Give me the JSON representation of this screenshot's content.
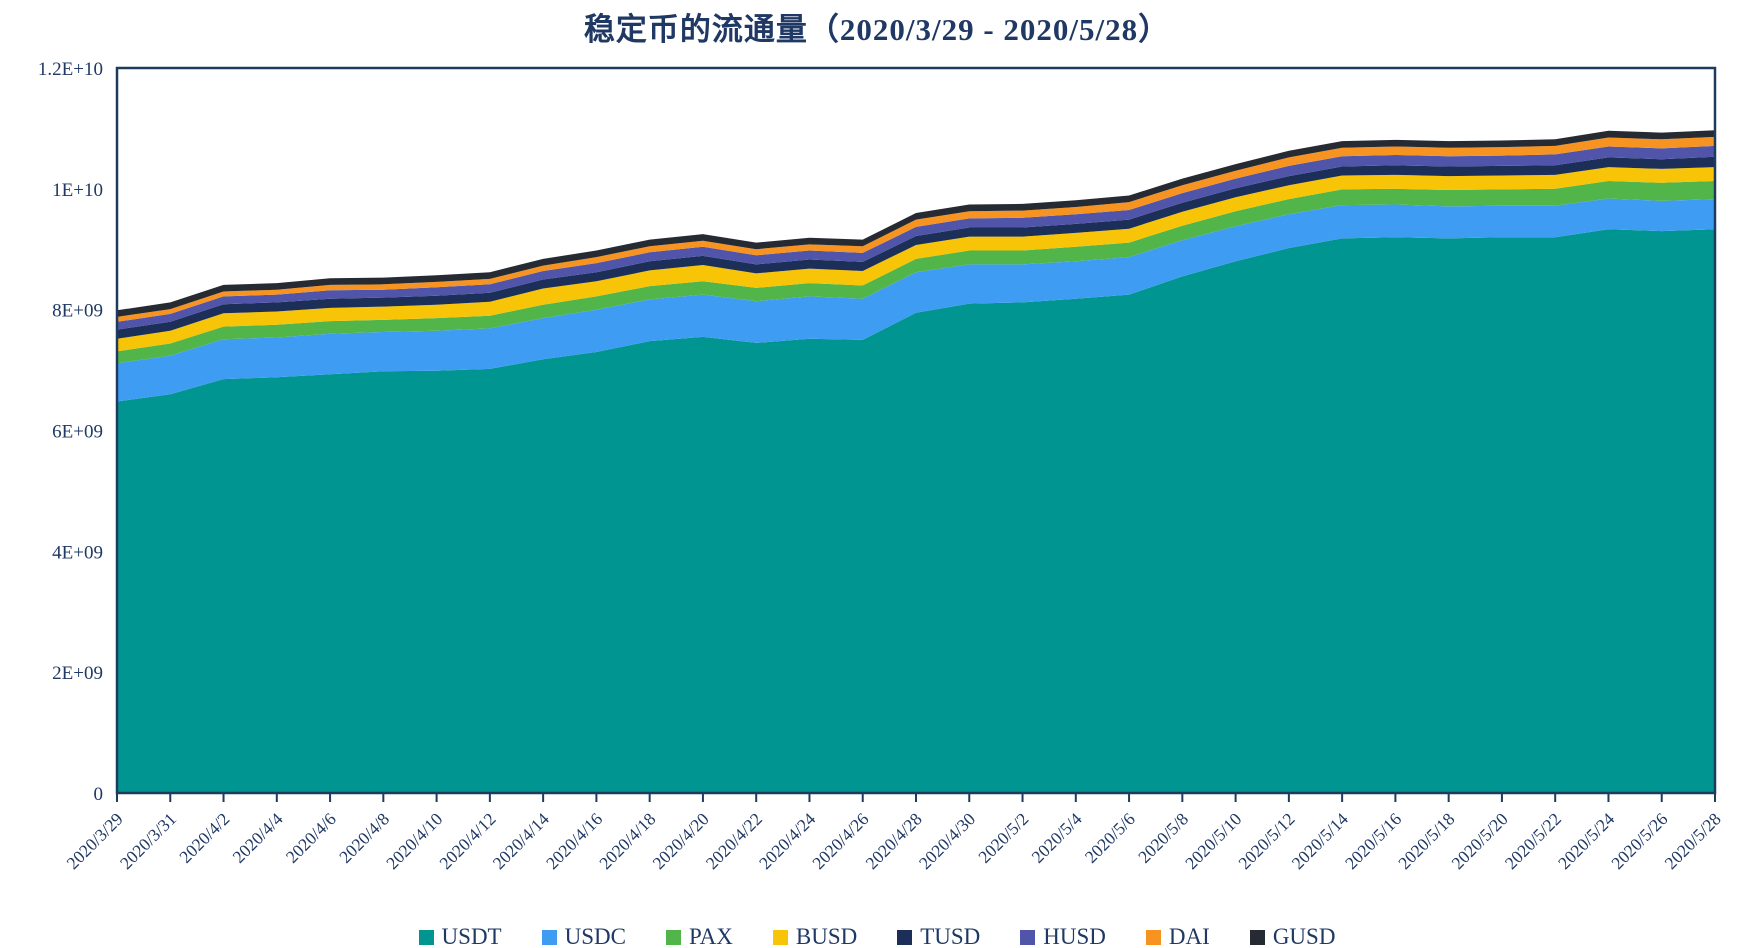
{
  "title": "稳定币的流通量（2020/3/29 - 2020/5/28）",
  "text_color": "#1F3864",
  "axis_color": "#1E3A5C",
  "chart_data": {
    "type": "area",
    "stacked": true,
    "title": "稳定币的流通量（2020/3/29 - 2020/5/28）",
    "xlabel": "",
    "ylabel": "",
    "unit": "USD (circulating supply)",
    "ylim": [
      0,
      12000000000
    ],
    "grid": false,
    "legend_position": "bottom",
    "y_ticks": [
      {
        "label": "0",
        "value_billions": 0
      },
      {
        "label": "2E+09",
        "value_billions": 2
      },
      {
        "label": "4E+09",
        "value_billions": 4
      },
      {
        "label": "6E+09",
        "value_billions": 6
      },
      {
        "label": "8E+09",
        "value_billions": 8
      },
      {
        "label": "1E+10",
        "value_billions": 10
      },
      {
        "label": "1.2E+10",
        "value_billions": 12
      }
    ],
    "x": [
      "2020/3/29",
      "2020/3/31",
      "2020/4/2",
      "2020/4/4",
      "2020/4/6",
      "2020/4/8",
      "2020/4/10",
      "2020/4/12",
      "2020/4/14",
      "2020/4/16",
      "2020/4/18",
      "2020/4/20",
      "2020/4/22",
      "2020/4/24",
      "2020/4/26",
      "2020/4/28",
      "2020/4/30",
      "2020/5/2",
      "2020/5/4",
      "2020/5/6",
      "2020/5/8",
      "2020/5/10",
      "2020/5/12",
      "2020/5/14",
      "2020/5/16",
      "2020/5/18",
      "2020/5/20",
      "2020/5/22",
      "2020/5/24",
      "2020/5/26",
      "2020/5/28"
    ],
    "series": [
      {
        "name": "USDT",
        "color": "#009590",
        "values_billions": [
          6.48,
          6.6,
          6.85,
          6.88,
          6.93,
          6.98,
          6.99,
          7.02,
          7.18,
          7.3,
          7.48,
          7.55,
          7.45,
          7.52,
          7.5,
          7.95,
          8.1,
          8.12,
          8.18,
          8.25,
          8.55,
          8.8,
          9.02,
          9.18,
          9.2,
          9.18,
          9.2,
          9.2,
          9.33,
          9.3,
          9.33
        ]
      },
      {
        "name": "USDC",
        "color": "#3E9DF3",
        "values_billions": [
          0.63,
          0.64,
          0.66,
          0.66,
          0.67,
          0.65,
          0.66,
          0.67,
          0.68,
          0.7,
          0.69,
          0.7,
          0.69,
          0.7,
          0.68,
          0.67,
          0.65,
          0.63,
          0.62,
          0.62,
          0.6,
          0.58,
          0.56,
          0.55,
          0.54,
          0.53,
          0.52,
          0.52,
          0.51,
          0.5,
          0.5
        ]
      },
      {
        "name": "PAX",
        "color": "#52B54A",
        "values_billions": [
          0.2,
          0.2,
          0.21,
          0.21,
          0.21,
          0.2,
          0.21,
          0.21,
          0.22,
          0.22,
          0.22,
          0.22,
          0.22,
          0.22,
          0.22,
          0.22,
          0.23,
          0.23,
          0.24,
          0.24,
          0.24,
          0.25,
          0.25,
          0.26,
          0.26,
          0.27,
          0.27,
          0.28,
          0.29,
          0.3,
          0.3
        ]
      },
      {
        "name": "BUSD",
        "color": "#F7C408",
        "values_billions": [
          0.21,
          0.21,
          0.22,
          0.22,
          0.22,
          0.22,
          0.22,
          0.23,
          0.27,
          0.25,
          0.26,
          0.27,
          0.24,
          0.24,
          0.24,
          0.23,
          0.23,
          0.23,
          0.23,
          0.23,
          0.23,
          0.23,
          0.23,
          0.23,
          0.23,
          0.23,
          0.23,
          0.23,
          0.23,
          0.23,
          0.23
        ]
      },
      {
        "name": "TUSD",
        "color": "#1B2F58",
        "values_billions": [
          0.15,
          0.15,
          0.15,
          0.15,
          0.15,
          0.15,
          0.15,
          0.15,
          0.15,
          0.15,
          0.15,
          0.15,
          0.15,
          0.15,
          0.15,
          0.15,
          0.15,
          0.15,
          0.15,
          0.15,
          0.15,
          0.15,
          0.15,
          0.15,
          0.16,
          0.16,
          0.16,
          0.16,
          0.16,
          0.16,
          0.17
        ]
      },
      {
        "name": "HUSD",
        "color": "#5155AA",
        "values_billions": [
          0.13,
          0.13,
          0.13,
          0.13,
          0.14,
          0.13,
          0.14,
          0.14,
          0.14,
          0.15,
          0.15,
          0.15,
          0.15,
          0.15,
          0.15,
          0.15,
          0.15,
          0.16,
          0.16,
          0.16,
          0.16,
          0.16,
          0.17,
          0.17,
          0.17,
          0.17,
          0.17,
          0.18,
          0.18,
          0.18,
          0.18
        ]
      },
      {
        "name": "DAI",
        "color": "#F79421",
        "values_billions": [
          0.08,
          0.08,
          0.08,
          0.08,
          0.09,
          0.09,
          0.09,
          0.09,
          0.09,
          0.1,
          0.1,
          0.1,
          0.1,
          0.1,
          0.11,
          0.12,
          0.12,
          0.12,
          0.12,
          0.13,
          0.13,
          0.13,
          0.14,
          0.14,
          0.14,
          0.14,
          0.14,
          0.14,
          0.15,
          0.15,
          0.15
        ]
      },
      {
        "name": "GUSD",
        "color": "#262A33",
        "values_billions": [
          0.11,
          0.11,
          0.11,
          0.11,
          0.11,
          0.11,
          0.11,
          0.11,
          0.11,
          0.11,
          0.11,
          0.11,
          0.11,
          0.11,
          0.11,
          0.11,
          0.11,
          0.11,
          0.11,
          0.11,
          0.11,
          0.11,
          0.11,
          0.11,
          0.11,
          0.11,
          0.11,
          0.11,
          0.11,
          0.11,
          0.11
        ]
      }
    ]
  }
}
